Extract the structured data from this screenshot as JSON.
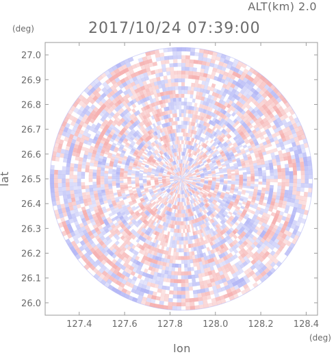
{
  "chart_data": {
    "type": "heatmap",
    "title": "2017/10/24 07:39:00",
    "subtitle": "ALT(km) 2.0",
    "xlabel": "lon",
    "ylabel": "lat",
    "xunit": "(deg)",
    "yunit": "(deg)",
    "xlim": [
      127.25,
      128.45
    ],
    "ylim": [
      25.95,
      27.05
    ],
    "xticks": [
      "127.4",
      "127.6",
      "127.8",
      "128.0",
      "128.2",
      "128.4"
    ],
    "xtick_values": [
      127.4,
      127.6,
      127.8,
      128.0,
      128.2,
      128.4
    ],
    "yticks": [
      "26.0",
      "26.1",
      "26.2",
      "26.3",
      "26.4",
      "26.5",
      "26.6",
      "26.7",
      "26.8",
      "26.9",
      "27.0"
    ],
    "ytick_values": [
      26.0,
      26.1,
      26.2,
      26.3,
      26.4,
      26.5,
      26.6,
      26.7,
      26.8,
      26.9,
      27.0
    ],
    "radar_center": {
      "lon": 127.85,
      "lat": 26.5
    },
    "radar_range_deg_lat": 0.53,
    "colors": {
      "positive": "#f4a6a6",
      "negative": "#a9adf4",
      "frame": "#9a9a9a",
      "text": "#6a6a6a"
    }
  }
}
